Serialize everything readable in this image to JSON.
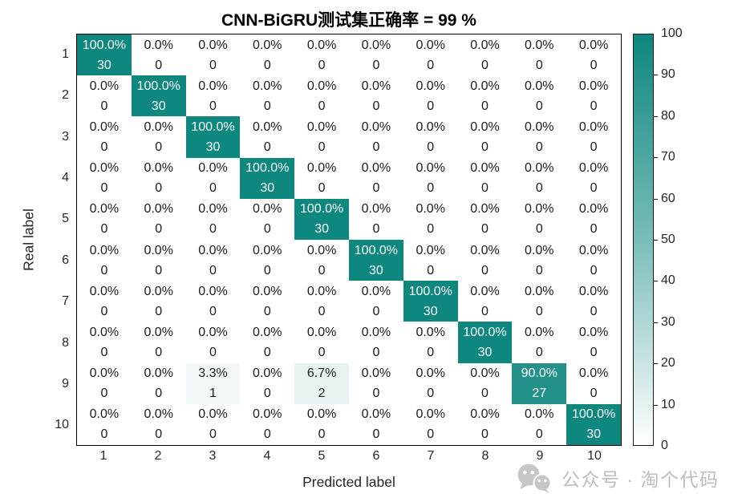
{
  "title": "CNN-BiGRU测试集正确率 = 99 %",
  "x_axis": {
    "label": "Predicted label",
    "ticks": [
      "1",
      "2",
      "3",
      "4",
      "5",
      "6",
      "7",
      "8",
      "9",
      "10"
    ]
  },
  "y_axis": {
    "label": "Real label",
    "ticks": [
      "1",
      "2",
      "3",
      "4",
      "5",
      "6",
      "7",
      "8",
      "9",
      "10"
    ]
  },
  "colorbar": {
    "min": 0,
    "max": 100,
    "ticks": [
      0,
      10,
      20,
      30,
      40,
      50,
      60,
      70,
      80,
      90,
      100
    ]
  },
  "colors": {
    "accent_teal": "#0e877f",
    "cell_text_light": "#ffffff",
    "cell_text_dark": "#1a1a1a",
    "axis_text": "#262626",
    "watermark_gray": "#bdbdbd"
  },
  "watermark": {
    "text": "公众号 · 淘个代码",
    "icon": "wechat-icon"
  },
  "chart_data": {
    "type": "heatmap",
    "title": "CNN-BiGRU测试集正确率 = 99 %",
    "xlabel": "Predicted label",
    "ylabel": "Real label",
    "x_categories": [
      "1",
      "2",
      "3",
      "4",
      "5",
      "6",
      "7",
      "8",
      "9",
      "10"
    ],
    "y_categories": [
      "1",
      "2",
      "3",
      "4",
      "5",
      "6",
      "7",
      "8",
      "9",
      "10"
    ],
    "counts": [
      [
        30,
        0,
        0,
        0,
        0,
        0,
        0,
        0,
        0,
        0
      ],
      [
        0,
        30,
        0,
        0,
        0,
        0,
        0,
        0,
        0,
        0
      ],
      [
        0,
        0,
        30,
        0,
        0,
        0,
        0,
        0,
        0,
        0
      ],
      [
        0,
        0,
        0,
        30,
        0,
        0,
        0,
        0,
        0,
        0
      ],
      [
        0,
        0,
        0,
        0,
        30,
        0,
        0,
        0,
        0,
        0
      ],
      [
        0,
        0,
        0,
        0,
        0,
        30,
        0,
        0,
        0,
        0
      ],
      [
        0,
        0,
        0,
        0,
        0,
        0,
        30,
        0,
        0,
        0
      ],
      [
        0,
        0,
        0,
        0,
        0,
        0,
        0,
        30,
        0,
        0
      ],
      [
        0,
        0,
        1,
        0,
        2,
        0,
        0,
        0,
        27,
        0
      ],
      [
        0,
        0,
        0,
        0,
        0,
        0,
        0,
        0,
        0,
        30
      ]
    ],
    "percent_labels": [
      [
        "100.0%",
        "0.0%",
        "0.0%",
        "0.0%",
        "0.0%",
        "0.0%",
        "0.0%",
        "0.0%",
        "0.0%",
        "0.0%"
      ],
      [
        "0.0%",
        "100.0%",
        "0.0%",
        "0.0%",
        "0.0%",
        "0.0%",
        "0.0%",
        "0.0%",
        "0.0%",
        "0.0%"
      ],
      [
        "0.0%",
        "0.0%",
        "100.0%",
        "0.0%",
        "0.0%",
        "0.0%",
        "0.0%",
        "0.0%",
        "0.0%",
        "0.0%"
      ],
      [
        "0.0%",
        "0.0%",
        "0.0%",
        "100.0%",
        "0.0%",
        "0.0%",
        "0.0%",
        "0.0%",
        "0.0%",
        "0.0%"
      ],
      [
        "0.0%",
        "0.0%",
        "0.0%",
        "0.0%",
        "100.0%",
        "0.0%",
        "0.0%",
        "0.0%",
        "0.0%",
        "0.0%"
      ],
      [
        "0.0%",
        "0.0%",
        "0.0%",
        "0.0%",
        "0.0%",
        "100.0%",
        "0.0%",
        "0.0%",
        "0.0%",
        "0.0%"
      ],
      [
        "0.0%",
        "0.0%",
        "0.0%",
        "0.0%",
        "0.0%",
        "0.0%",
        "100.0%",
        "0.0%",
        "0.0%",
        "0.0%"
      ],
      [
        "0.0%",
        "0.0%",
        "0.0%",
        "0.0%",
        "0.0%",
        "0.0%",
        "0.0%",
        "100.0%",
        "0.0%",
        "0.0%"
      ],
      [
        "0.0%",
        "0.0%",
        "3.3%",
        "0.0%",
        "6.7%",
        "0.0%",
        "0.0%",
        "0.0%",
        "90.0%",
        "0.0%"
      ],
      [
        "0.0%",
        "0.0%",
        "0.0%",
        "0.0%",
        "0.0%",
        "0.0%",
        "0.0%",
        "0.0%",
        "0.0%",
        "100.0%"
      ]
    ],
    "vmin": 0,
    "vmax": 100,
    "colormap": [
      "#ffffff",
      "#0e877f"
    ],
    "legend_position": "colorbar-right",
    "grid": false
  }
}
